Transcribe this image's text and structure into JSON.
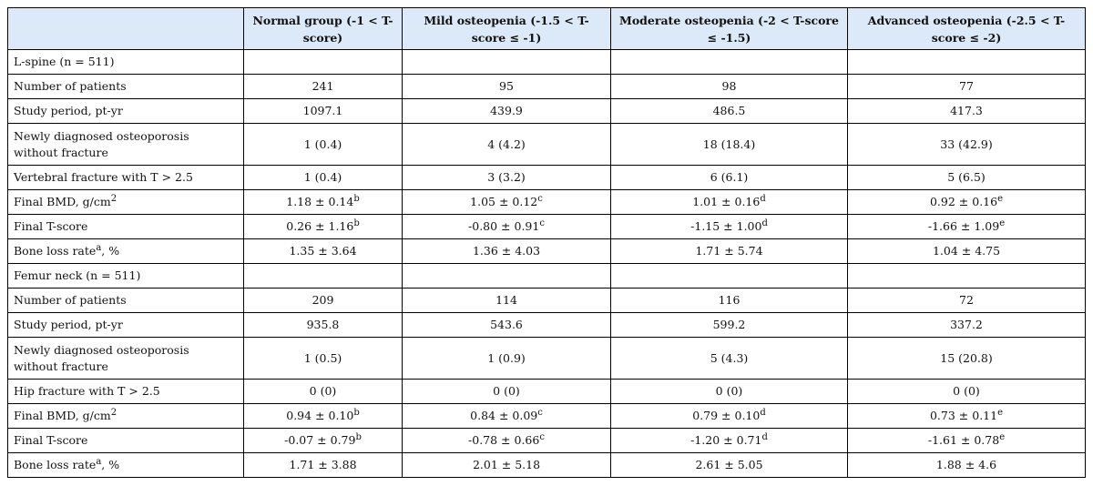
{
  "headers": [
    "",
    "Normal group (-1 < T-score)",
    "Mild osteopenia (-1.5 < T-score ≤ -1)",
    "Moderate osteopenia (-2 < T-score ≤ -1.5)",
    "Advanced osteopenia (-2.5 < T-score ≤ -2)"
  ],
  "lspine": {
    "title": "L-spine (n = 511)",
    "patients": {
      "label": "Number of patients",
      "v": [
        "241",
        "95",
        "98",
        "77"
      ]
    },
    "period": {
      "label": "Study period, pt-yr",
      "v": [
        "1097.1",
        "439.9",
        "486.5",
        "417.3"
      ]
    },
    "newdx": {
      "label1": "Newly diagnosed osteoporosis",
      "label2": "without fracture",
      "v": [
        "1 (0.4)",
        "4 (4.2)",
        "18 (18.4)",
        "33 (42.9)"
      ]
    },
    "fracture": {
      "label": "Vertebral fracture with T > 2.5",
      "v": [
        "1 (0.4)",
        "3 (3.2)",
        "6 (6.1)",
        "5 (6.5)"
      ]
    },
    "bmd": {
      "label": "Final BMD, g/cm",
      "label_sup": "2",
      "v": [
        "1.18 ± 0.14",
        "1.05 ± 0.12",
        "1.01 ± 0.16",
        "0.92 ± 0.16"
      ],
      "sup": [
        "b",
        "c",
        "d",
        "e"
      ]
    },
    "tscore": {
      "label": "Final T-score",
      "v": [
        "0.26 ± 1.16",
        "-0.80 ± 0.91",
        "-1.15 ± 1.00",
        "-1.66 ± 1.09"
      ],
      "sup": [
        "b",
        "c",
        "d",
        "e"
      ]
    },
    "loss": {
      "label": "Bone loss rate",
      "label_sup": "a",
      "label_suffix": ", %",
      "v": [
        "1.35 ± 3.64",
        "1.36 ± 4.03",
        "1.71 ± 5.74",
        "1.04 ± 4.75"
      ]
    }
  },
  "femur": {
    "title": "Femur neck (n = 511)",
    "patients": {
      "label": "Number of patients",
      "v": [
        "209",
        "114",
        "116",
        "72"
      ]
    },
    "period": {
      "label": "Study period, pt-yr",
      "v": [
        "935.8",
        "543.6",
        "599.2",
        "337.2"
      ]
    },
    "newdx": {
      "label1": "Newly diagnosed osteoporosis",
      "label2": "without fracture",
      "v": [
        "1 (0.5)",
        "1 (0.9)",
        "5 (4.3)",
        "15 (20.8)"
      ]
    },
    "fracture": {
      "label": "Hip fracture with T > 2.5",
      "v": [
        "0 (0)",
        "0 (0)",
        "0 (0)",
        "0 (0)"
      ]
    },
    "bmd": {
      "label": "Final BMD, g/cm",
      "label_sup": "2",
      "v": [
        "0.94 ± 0.10",
        "0.84 ± 0.09",
        "0.79 ± 0.10",
        "0.73 ± 0.11"
      ],
      "sup": [
        "b",
        "c",
        "d",
        "e"
      ]
    },
    "tscore": {
      "label": "Final T-score",
      "v": [
        "-0.07 ± 0.79",
        "-0.78 ± 0.66",
        "-1.20 ± 0.71",
        "-1.61 ± 0.78"
      ],
      "sup": [
        "b",
        "c",
        "d",
        "e"
      ]
    },
    "loss": {
      "label": "Bone loss rate",
      "label_sup": "a",
      "label_suffix": ", %",
      "v": [
        "1.71 ± 3.88",
        "2.01 ± 5.18",
        "2.61 ± 5.05",
        "1.88 ± 4.6"
      ]
    }
  }
}
